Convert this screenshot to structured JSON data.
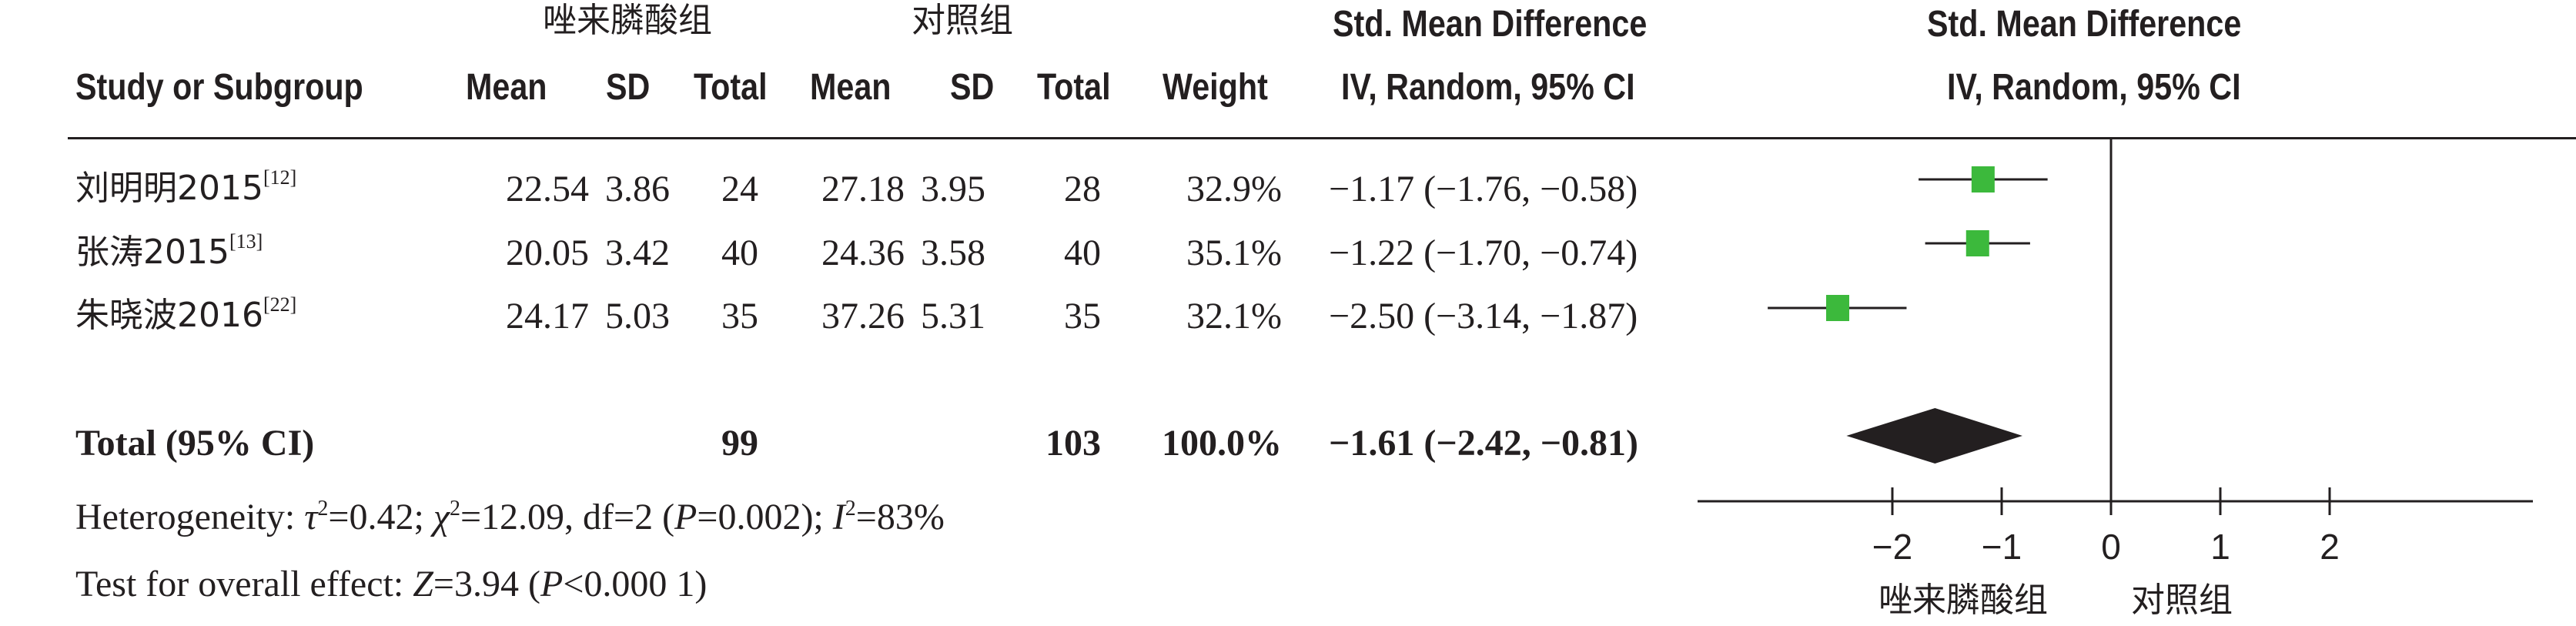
{
  "header": {
    "group1": "唑来膦酸组",
    "group2": "对照组",
    "smd_title": "Std. Mean Difference",
    "smd_sub": "IV, Random, 95% CI",
    "plot_title": "Std. Mean Difference",
    "plot_sub": "IV, Random, 95% CI",
    "study": "Study or Subgroup",
    "mean1": "Mean",
    "sd1": "SD",
    "total1": "Total",
    "mean2": "Mean",
    "sd2": "SD",
    "total2": "Total",
    "weight": "Weight"
  },
  "studies": [
    {
      "name": "刘明明2015",
      "ref": "[12]",
      "mean1": "22.54",
      "sd1": "3.86",
      "total1": "24",
      "mean2": "27.18",
      "sd2": "3.95",
      "total2": "28",
      "weight": "32.9%",
      "ci": "−1.17 (−1.76, −0.58)"
    },
    {
      "name": "张涛2015",
      "ref": "[13]",
      "mean1": "20.05",
      "sd1": "3.42",
      "total1": "40",
      "mean2": "24.36",
      "sd2": "3.58",
      "total2": "40",
      "weight": "35.1%",
      "ci": "−1.22 (−1.70, −0.74)"
    },
    {
      "name": "朱晓波2016",
      "ref": "[22]",
      "mean1": "24.17",
      "sd1": "5.03",
      "total1": "35",
      "mean2": "37.26",
      "sd2": "5.31",
      "total2": "35",
      "weight": "32.1%",
      "ci": "−2.50 (−3.14, −1.87)"
    }
  ],
  "total": {
    "label": "Total (95% CI)",
    "total1": "99",
    "total2": "103",
    "weight": "100.0%",
    "ci": "−1.61 (−2.42, −0.81)"
  },
  "heterogeneity": {
    "label": "Heterogeneity: ",
    "tau_sym": "τ",
    "tau_val": "=0.42; ",
    "chi_sym": "χ",
    "chi_val": "=12.09, df=2 (",
    "p_sym": "P",
    "p_val": "=0.002); ",
    "i_sym": "I",
    "i_val": "=83%",
    "sup2": "2"
  },
  "overall": {
    "label": "Test for overall effect: ",
    "z_sym": "Z",
    "z_val": "=3.94 (",
    "p_sym": "P",
    "p_val": "<0.000 1)"
  },
  "axis": {
    "favours_left": "唑来膦酸组",
    "favours_right": "对照组"
  },
  "colors": {
    "square": "#3cb93c",
    "diamond": "#231f20",
    "text": "#231f20"
  },
  "chart_data": {
    "type": "forest",
    "xlim": [
      -2,
      2
    ],
    "ticks": [
      -2,
      -1,
      0,
      1,
      2
    ],
    "tick_labels": [
      "−2",
      "−1",
      "0",
      "1",
      "2"
    ],
    "points": [
      {
        "estimate": -1.17,
        "lower": -1.76,
        "upper": -0.58,
        "weight": 32.9
      },
      {
        "estimate": -1.22,
        "lower": -1.7,
        "upper": -0.74,
        "weight": 35.1
      },
      {
        "estimate": -2.5,
        "lower": -3.14,
        "upper": -1.87,
        "weight": 32.1
      }
    ],
    "pooled": {
      "estimate": -1.61,
      "lower": -2.42,
      "upper": -0.81
    }
  }
}
